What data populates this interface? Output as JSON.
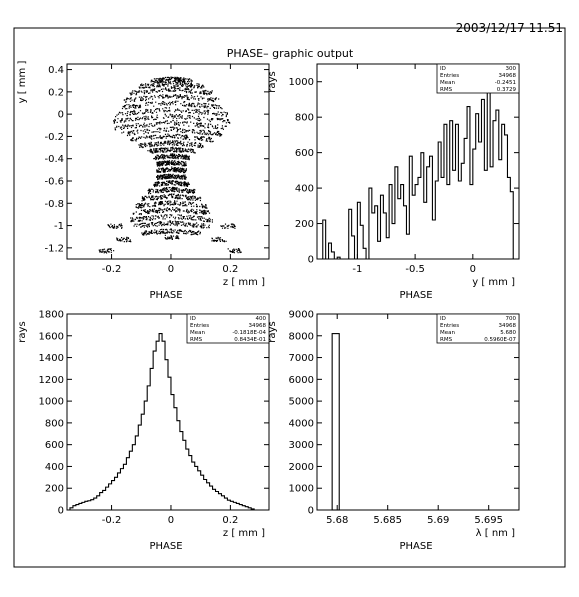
{
  "header": {
    "timestamp": "2003/12/17   11.51",
    "title": "PHASE– graphic output"
  },
  "chart_data": [
    {
      "id": "scatter",
      "type": "scatter",
      "xlabel": "z [ mm ]",
      "ylabel": "y [ mm ]",
      "caption": "PHASE",
      "xlim": [
        -0.35,
        0.33
      ],
      "ylim": [
        -1.3,
        0.45
      ],
      "xticks": [
        -0.2,
        0,
        0.2
      ],
      "xtick_labels": [
        "-0.2",
        "0",
        "0.2"
      ],
      "yticks": [
        0.4,
        0.2,
        0,
        -0.2,
        -0.4,
        -0.6,
        -0.8,
        -1,
        -1.2
      ],
      "ytick_labels": [
        "0.4",
        "0.2",
        "0",
        "-0.2",
        "-0.4",
        "-0.6",
        "-0.8",
        "-1",
        "-1.2"
      ],
      "note": "point cloud: dense scattered dots forming a funnel shape; values visible only as pattern"
    },
    {
      "id": "hist_y",
      "type": "bar",
      "xlabel": "y [ mm ]",
      "ylabel": "rays",
      "caption": "PHASE",
      "xlim": [
        -1.35,
        0.4
      ],
      "ylim": [
        0,
        1100
      ],
      "xticks": [
        -1,
        -0.5,
        0
      ],
      "xtick_labels": [
        "-1",
        "-0.5",
        "0"
      ],
      "yticks": [
        0,
        200,
        400,
        600,
        800,
        1000
      ],
      "ytick_labels": [
        "0",
        "200",
        "400",
        "600",
        "800",
        "1000"
      ],
      "stats": [
        [
          "ID",
          "300"
        ],
        [
          "Entries",
          "34968"
        ],
        [
          "Mean",
          "-0.2451"
        ],
        [
          "RMS",
          "0.3729"
        ]
      ],
      "bin_start": -1.3,
      "bin_width": 0.025,
      "values": [
        220,
        0,
        90,
        40,
        0,
        10,
        0,
        0,
        0,
        280,
        130,
        0,
        320,
        190,
        60,
        0,
        400,
        260,
        300,
        100,
        360,
        260,
        120,
        420,
        200,
        520,
        340,
        420,
        300,
        140,
        580,
        360,
        420,
        460,
        600,
        320,
        520,
        580,
        220,
        440,
        660,
        460,
        760,
        420,
        780,
        500,
        760,
        440,
        540,
        680,
        860,
        420,
        620,
        820,
        660,
        900,
        500,
        960,
        520,
        780,
        840,
        560,
        760,
        700,
        460,
        380,
        0
      ]
    },
    {
      "id": "hist_z",
      "type": "bar",
      "xlabel": "z [ mm ]",
      "ylabel": "rays",
      "caption": "PHASE",
      "xlim": [
        -0.35,
        0.33
      ],
      "ylim": [
        0,
        1800
      ],
      "xticks": [
        -0.2,
        0,
        0.2
      ],
      "xtick_labels": [
        "-0.2",
        "0",
        "0.2"
      ],
      "yticks": [
        0,
        200,
        400,
        600,
        800,
        1000,
        1200,
        1400,
        1600,
        1800
      ],
      "ytick_labels": [
        "0",
        "200",
        "400",
        "600",
        "800",
        "1000",
        "1200",
        "1400",
        "1600",
        "1800"
      ],
      "stats": [
        [
          "ID",
          "400"
        ],
        [
          "Entries",
          "34968"
        ],
        [
          "Mean",
          "-0.1818E-04"
        ],
        [
          "RMS",
          "0.8434E-01"
        ]
      ],
      "bin_start": -0.35,
      "bin_width": 0.01,
      "values": [
        0,
        20,
        40,
        50,
        60,
        70,
        80,
        85,
        95,
        110,
        130,
        160,
        180,
        210,
        240,
        270,
        300,
        340,
        380,
        420,
        480,
        540,
        600,
        680,
        780,
        880,
        1000,
        1140,
        1300,
        1460,
        1550,
        1620,
        1550,
        1380,
        1220,
        1060,
        940,
        820,
        720,
        640,
        560,
        500,
        440,
        400,
        360,
        320,
        280,
        250,
        220,
        190,
        170,
        150,
        130,
        110,
        90,
        80,
        70,
        60,
        50,
        40,
        30,
        20,
        10,
        0,
        0,
        0,
        0,
        0
      ]
    },
    {
      "id": "hist_lambda",
      "type": "bar",
      "xlabel": "λ [ nm ]",
      "ylabel": "rays",
      "caption": "PHASE",
      "xlim": [
        5.678,
        5.698
      ],
      "ylim": [
        0,
        9000
      ],
      "xticks": [
        5.68,
        5.685,
        5.69,
        5.695
      ],
      "xtick_labels": [
        "5.68",
        "5.685",
        "5.69",
        "5.695"
      ],
      "yticks": [
        0,
        1000,
        2000,
        3000,
        4000,
        5000,
        6000,
        7000,
        8000,
        9000
      ],
      "ytick_labels": [
        "0",
        "1000",
        "2000",
        "3000",
        "4000",
        "5000",
        "6000",
        "7000",
        "8000",
        "9000"
      ],
      "stats": [
        [
          "ID",
          "700"
        ],
        [
          "Entries",
          "34968"
        ],
        [
          "Mean",
          "5.680"
        ],
        [
          "RMS",
          "0.5960E-07"
        ]
      ],
      "bars": [
        [
          5.6795,
          5.6802,
          8100
        ]
      ]
    }
  ]
}
